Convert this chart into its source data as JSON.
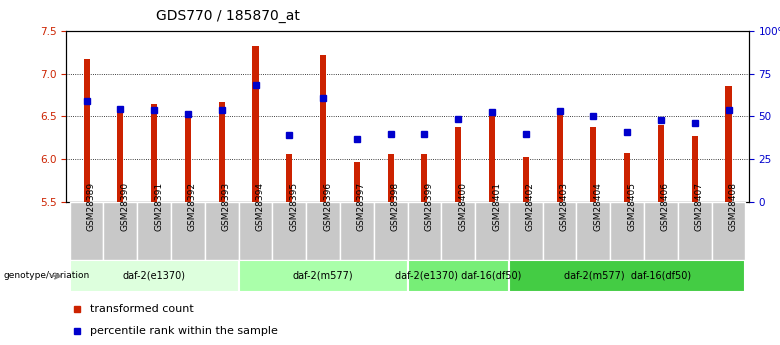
{
  "title": "GDS770 / 185870_at",
  "samples": [
    "GSM28389",
    "GSM28390",
    "GSM28391",
    "GSM28392",
    "GSM28393",
    "GSM28394",
    "GSM28395",
    "GSM28396",
    "GSM28397",
    "GSM28398",
    "GSM28399",
    "GSM28400",
    "GSM28401",
    "GSM28402",
    "GSM28403",
    "GSM28404",
    "GSM28405",
    "GSM28406",
    "GSM28407",
    "GSM28408"
  ],
  "bar_values": [
    7.17,
    6.6,
    6.65,
    6.51,
    6.67,
    7.33,
    6.06,
    7.22,
    5.97,
    6.06,
    6.06,
    6.38,
    6.55,
    6.03,
    6.57,
    6.38,
    6.07,
    6.4,
    6.27,
    6.86
  ],
  "percentile_values": [
    6.68,
    6.59,
    6.57,
    6.53,
    6.58,
    6.87,
    6.28,
    6.72,
    6.23,
    6.3,
    6.3,
    6.47,
    6.55,
    6.3,
    6.56,
    6.5,
    6.32,
    6.46,
    6.42,
    6.58
  ],
  "ylim_left": [
    5.5,
    7.5
  ],
  "ylim_right": [
    0,
    100
  ],
  "yticks_left": [
    5.5,
    6.0,
    6.5,
    7.0,
    7.5
  ],
  "yticks_right": [
    0,
    25,
    50,
    75,
    100
  ],
  "yticklabels_right": [
    "0",
    "25",
    "50",
    "75",
    "100%"
  ],
  "bar_color": "#cc2200",
  "percentile_color": "#0000cc",
  "bar_bottom": 5.5,
  "bar_width": 0.18,
  "groups": [
    {
      "label": "daf-2(e1370)",
      "start": 0,
      "end": 5,
      "color": "#ddffdd"
    },
    {
      "label": "daf-2(m577)",
      "start": 5,
      "end": 10,
      "color": "#aaffaa"
    },
    {
      "label": "daf-2(e1370) daf-16(df50)",
      "start": 10,
      "end": 13,
      "color": "#77ee77"
    },
    {
      "label": "daf-2(m577)  daf-16(df50)",
      "start": 13,
      "end": 20,
      "color": "#44cc44"
    }
  ],
  "genotype_label": "genotype/variation",
  "legend": [
    {
      "label": "transformed count",
      "color": "#cc2200"
    },
    {
      "label": "percentile rank within the sample",
      "color": "#0000cc"
    }
  ],
  "title_fontsize": 10,
  "axis_fontsize": 8,
  "tick_fontsize": 7.5,
  "sample_fontsize": 6.5
}
